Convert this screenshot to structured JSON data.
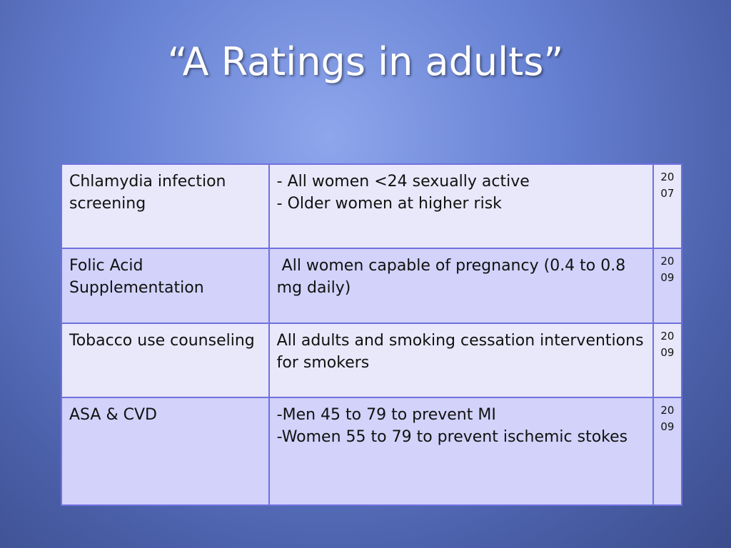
{
  "title": "“A Ratings in adults”",
  "table": {
    "rows": [
      [
        "Chlamydia infection screening",
        [
          "- All women <24 sexually active",
          "- Older women at higher risk"
        ],
        "2007"
      ],
      [
        "Folic Acid Supplementation",
        [
          " All women capable of pregnancy (0.4 to 0.8 mg daily)"
        ],
        "2009"
      ],
      [
        "Tobacco use counseling",
        [
          "All adults and smoking cessation interventions for smokers"
        ],
        "2009"
      ],
      [
        "ASA & CVD",
        [
          "-Men 45 to 79 to prevent MI",
          "-Women 55 to 79 to prevent ischemic stokes"
        ],
        "2009"
      ]
    ]
  }
}
